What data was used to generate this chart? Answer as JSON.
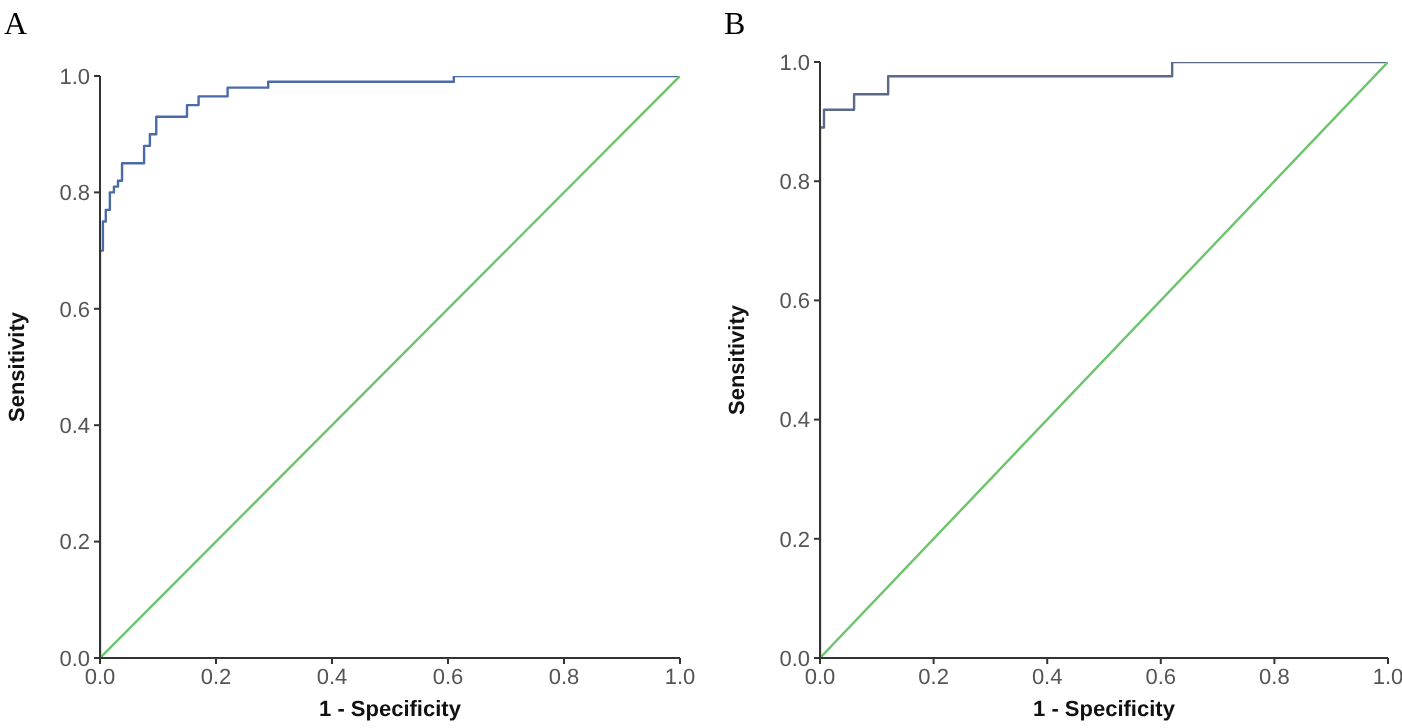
{
  "chart_data": [
    {
      "type": "step",
      "title": "A",
      "xlabel": "1 - Specificity",
      "ylabel": "Sensitivity",
      "xlim": [
        0,
        1
      ],
      "ylim": [
        0,
        1
      ],
      "xticks": [
        {
          "value": 0,
          "label": "0.0"
        },
        {
          "value": 0.2,
          "label": "0.2"
        },
        {
          "value": 0.4,
          "label": "0.4"
        },
        {
          "value": 0.6,
          "label": "0.6"
        },
        {
          "value": 0.8,
          "label": "0.8"
        },
        {
          "value": 1,
          "label": "1.0"
        }
      ],
      "yticks": [
        {
          "value": 0,
          "label": "0.0"
        },
        {
          "value": 0.2,
          "label": "0.2"
        },
        {
          "value": 0.4,
          "label": "0.4"
        },
        {
          "value": 0.6,
          "label": "0.6"
        },
        {
          "value": 0.8,
          "label": "0.8"
        },
        {
          "value": 1,
          "label": "1.0"
        }
      ],
      "grid": false,
      "legend": false,
      "marker": "none",
      "series": [
        {
          "color": "#4a6aa8",
          "x": [
            0,
            0,
            0.005,
            0.01,
            0.017,
            0.024,
            0.031,
            0.038,
            0.076,
            0.086,
            0.097,
            0.15,
            0.17,
            0.22,
            0.29,
            0.61,
            1
          ],
          "values": [
            0,
            0.7,
            0.75,
            0.77,
            0.8,
            0.81,
            0.82,
            0.85,
            0.88,
            0.9,
            0.93,
            0.95,
            0.965,
            0.98,
            0.99,
            1,
            1
          ]
        },
        {
          "type": "line",
          "color": "#6cc46c",
          "x": [
            0,
            1
          ],
          "values": [
            0,
            1
          ]
        }
      ]
    },
    {
      "type": "step",
      "title": "B",
      "xlabel": "1 - Specificity",
      "ylabel": "Sensitivity",
      "xlim": [
        0,
        1
      ],
      "ylim": [
        0,
        1
      ],
      "xticks": [
        {
          "value": 0,
          "label": "0.0"
        },
        {
          "value": 0.2,
          "label": "0.2"
        },
        {
          "value": 0.4,
          "label": "0.4"
        },
        {
          "value": 0.6,
          "label": "0.6"
        },
        {
          "value": 0.8,
          "label": "0.8"
        },
        {
          "value": 1,
          "label": "1.0"
        }
      ],
      "yticks": [
        {
          "value": 0,
          "label": "0.0"
        },
        {
          "value": 0.2,
          "label": "0.2"
        },
        {
          "value": 0.4,
          "label": "0.4"
        },
        {
          "value": 0.6,
          "label": "0.6"
        },
        {
          "value": 0.8,
          "label": "0.8"
        },
        {
          "value": 1,
          "label": "1.0"
        }
      ],
      "grid": false,
      "legend": false,
      "marker": "none",
      "series": [
        {
          "color": "#5a6a88",
          "x": [
            0,
            0,
            0.007,
            0.06,
            0.12,
            0.62,
            1
          ],
          "values": [
            0,
            0.89,
            0.92,
            0.946,
            0.976,
            1,
            1
          ]
        },
        {
          "type": "line",
          "color": "#6cc46c",
          "x": [
            0,
            1
          ],
          "values": [
            0,
            1
          ]
        }
      ]
    }
  ]
}
